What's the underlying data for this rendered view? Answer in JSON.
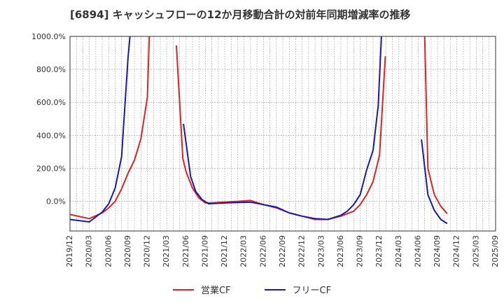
{
  "title": "[6894]  キャッシュフローの12か月移動合計の対前年同期増減率の推移",
  "chart_data": {
    "type": "line",
    "title": "[6894]  キャッシュフローの12か月移動合計の対前年同期増減率の推移",
    "xlabel": "",
    "ylabel": "",
    "ylim": [
      -180,
      1000
    ],
    "yticks": [
      0,
      200,
      400,
      600,
      800,
      1000
    ],
    "ytick_labels": [
      "0.0%",
      "200.0%",
      "400.0%",
      "600.0%",
      "800.0%",
      "1000.0%"
    ],
    "x_range": [
      0,
      66
    ],
    "xticks": [
      0,
      3,
      6,
      9,
      12,
      15,
      18,
      21,
      24,
      27,
      30,
      33,
      36,
      39,
      42,
      45,
      48,
      51,
      54,
      57,
      60,
      63,
      66
    ],
    "xtick_labels": [
      "2019/12",
      "2020/03",
      "2020/06",
      "2020/09",
      "2020/12",
      "2021/03",
      "2021/06",
      "2021/09",
      "2021/12",
      "2022/03",
      "2022/06",
      "2022/09",
      "2022/12",
      "2023/03",
      "2023/06",
      "2023/09",
      "2023/12",
      "2024/03",
      "2024/06",
      "2024/09",
      "2024/12",
      "2025/03",
      "2025/09"
    ],
    "grid": true,
    "legend": "bottom-center",
    "series": [
      {
        "name": "営業CF",
        "color": "#dd2222",
        "segments": [
          [
            [
              0,
              -80
            ],
            [
              3,
              -105
            ],
            [
              5,
              -70
            ],
            [
              6,
              -40
            ],
            [
              7,
              0
            ],
            [
              8,
              75
            ],
            [
              9,
              170
            ],
            [
              10,
              250
            ],
            [
              11,
              380
            ],
            [
              12,
              630
            ],
            [
              12.3,
              1000
            ]
          ],
          [
            [
              16.5,
              945
            ],
            [
              17.5,
              260
            ],
            [
              18,
              180
            ],
            [
              19,
              80
            ],
            [
              20,
              20
            ],
            [
              21,
              -10
            ],
            [
              22,
              -10
            ],
            [
              24,
              -5
            ],
            [
              26,
              0
            ],
            [
              28,
              5
            ],
            [
              30,
              -20
            ],
            [
              32,
              -40
            ],
            [
              34,
              -70
            ],
            [
              36,
              -90
            ],
            [
              38,
              -110
            ],
            [
              40,
              -110
            ],
            [
              42,
              -90
            ],
            [
              44,
              -60
            ],
            [
              45,
              -20
            ],
            [
              46,
              40
            ],
            [
              47,
              120
            ],
            [
              48,
              280
            ],
            [
              48.9,
              880
            ]
          ],
          [
            [
              55,
              1000
            ],
            [
              55.5,
              200
            ],
            [
              56.5,
              40
            ],
            [
              57.5,
              -30
            ],
            [
              58.5,
              -75
            ]
          ]
        ]
      },
      {
        "name": "フリーCF",
        "color": "#1a1aaa",
        "segments": [
          [
            [
              0,
              -110
            ],
            [
              3,
              -125
            ],
            [
              4,
              -95
            ],
            [
              5,
              -65
            ],
            [
              6,
              -15
            ],
            [
              7,
              80
            ],
            [
              8,
              270
            ],
            [
              9,
              870
            ],
            [
              9.3,
              1000
            ]
          ],
          [
            [
              17.6,
              470
            ],
            [
              18.7,
              150
            ],
            [
              19.5,
              60
            ],
            [
              20.5,
              10
            ],
            [
              21.5,
              -15
            ],
            [
              24,
              -10
            ],
            [
              28,
              -5
            ],
            [
              30,
              -20
            ],
            [
              32,
              -35
            ],
            [
              34,
              -70
            ],
            [
              36,
              -90
            ],
            [
              38,
              -105
            ],
            [
              40,
              -110
            ],
            [
              42,
              -85
            ],
            [
              43,
              -60
            ],
            [
              44,
              -20
            ],
            [
              45,
              40
            ],
            [
              46,
              190
            ],
            [
              47,
              310
            ],
            [
              47.8,
              580
            ],
            [
              48.3,
              1000
            ]
          ],
          [
            [
              54.5,
              375
            ],
            [
              55.5,
              40
            ],
            [
              56.5,
              -55
            ],
            [
              57.5,
              -110
            ],
            [
              58.5,
              -135
            ]
          ]
        ]
      }
    ]
  }
}
